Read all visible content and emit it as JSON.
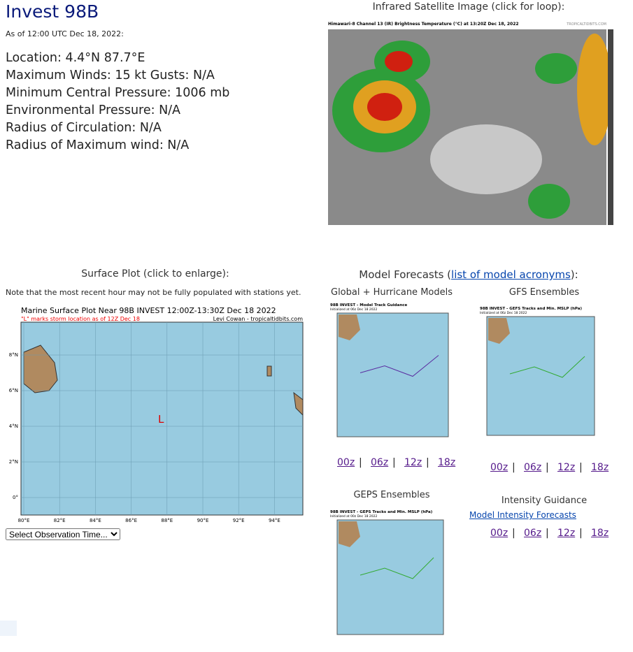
{
  "storm": {
    "title": "Invest 98B",
    "as_of": "As of 12:00 UTC Dec 18, 2022:",
    "details": [
      "Location: 4.4°N 87.7°E",
      "Maximum Winds: 15 kt  Gusts: N/A",
      "Minimum Central Pressure: 1006 mb",
      "Environmental Pressure: N/A",
      "Radius of Circulation: N/A",
      "Radius of Maximum wind: N/A"
    ]
  },
  "satellite": {
    "heading": "Infrared Satellite Image (click for loop):",
    "image_title": "Himawari-8 Channel 13 (IR) Brightness Temperature (°C) at 13:20Z Dec 18, 2022",
    "credit": "TROPICALTIDBITS.COM"
  },
  "surface": {
    "heading": "Surface Plot (click to enlarge):",
    "note": "Note that the most recent hour may not be fully populated with stations yet.",
    "image_title": "Marine Surface Plot Near 98B INVEST 12:00Z-13:30Z Dec 18 2022",
    "image_subtitle": "\"L\" marks storm location as of 12Z Dec 18",
    "credit": "Levi Cowan - tropicaltidbits.com",
    "storm_marker": "L",
    "x_labels": [
      "80°E",
      "82°E",
      "84°E",
      "86°E",
      "88°E",
      "90°E",
      "92°E",
      "94°E"
    ],
    "y_labels": [
      "8°N",
      "6°N",
      "4°N",
      "2°N",
      "0°"
    ],
    "select": "Select Observation Time..."
  },
  "models": {
    "heading_prefix": "Model Forecasts (",
    "heading_link": "list of model acronyms",
    "heading_suffix": "):",
    "separator": "|",
    "panels": [
      {
        "title": "Global + Hurricane Models",
        "image_title": "98B INVEST - Model Track Guidance",
        "image_subtitle": "Initialized at 06z Dec 18 2022",
        "links": [
          "00z",
          "06z",
          "12z",
          "18z"
        ]
      },
      {
        "title": "GFS Ensembles",
        "image_title": "98B INVEST - GEFS Tracks and Min. MSLP (hPa)",
        "image_subtitle": "Initialized at 06z Dec 18 2022",
        "links": [
          "00z",
          "06z",
          "12z",
          "18z"
        ]
      },
      {
        "title": "GEPS Ensembles",
        "image_title": "98B INVEST - GEPS Tracks and Min. MSLP (hPa)",
        "image_subtitle": "Initialized at 00z Dec 18 2022",
        "links": []
      }
    ],
    "intensity": {
      "title": "Intensity Guidance",
      "link": "Model Intensity Forecasts",
      "links": [
        "00z",
        "06z",
        "12z",
        "18z"
      ]
    }
  }
}
